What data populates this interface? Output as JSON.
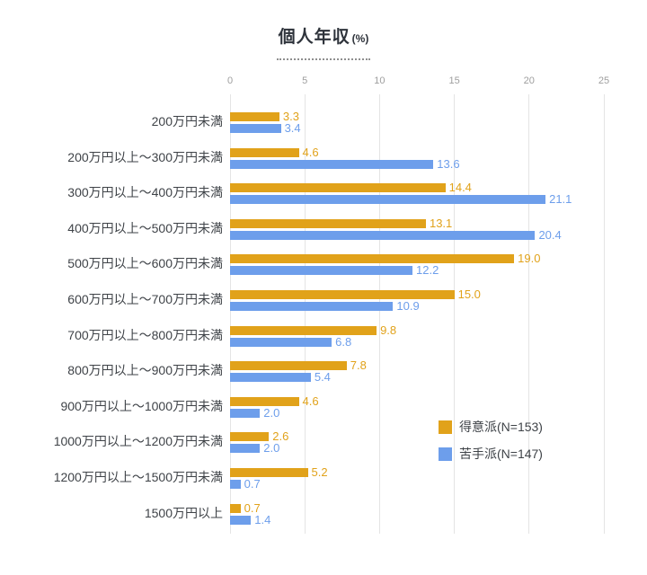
{
  "title": {
    "main": "個人年収",
    "unit": "(%)"
  },
  "chart_data": {
    "type": "bar",
    "orientation": "horizontal",
    "title": "個人年収(%)",
    "categories": [
      "200万円未満",
      "200万円以上〜300万円未満",
      "300万円以上〜400万円未満",
      "400万円以上〜500万円未満",
      "500万円以上〜600万円未満",
      "600万円以上〜700万円未満",
      "700万円以上〜800万円未満",
      "800万円以上〜900万円未満",
      "900万円以上〜1000万円未満",
      "1000万円以上〜1200万円未満",
      "1200万円以上〜1500万円未満",
      "1500万円以上"
    ],
    "series": [
      {
        "name": "得意派(N=153)",
        "color": "#E1A21A",
        "values": [
          3.3,
          4.6,
          14.4,
          13.1,
          19.0,
          15.0,
          9.8,
          7.8,
          4.6,
          2.6,
          5.2,
          0.7
        ]
      },
      {
        "name": "苦手派(N=147)",
        "color": "#6D9EEB",
        "values": [
          3.4,
          13.6,
          21.1,
          20.4,
          12.2,
          10.9,
          6.8,
          5.4,
          2.0,
          2.0,
          0.7,
          1.4
        ]
      }
    ],
    "xlim": [
      0,
      25
    ],
    "xticks": [
      0,
      5,
      10,
      15,
      20,
      25
    ],
    "grid": true,
    "legend_position": "right-middle",
    "value_labels": true
  }
}
